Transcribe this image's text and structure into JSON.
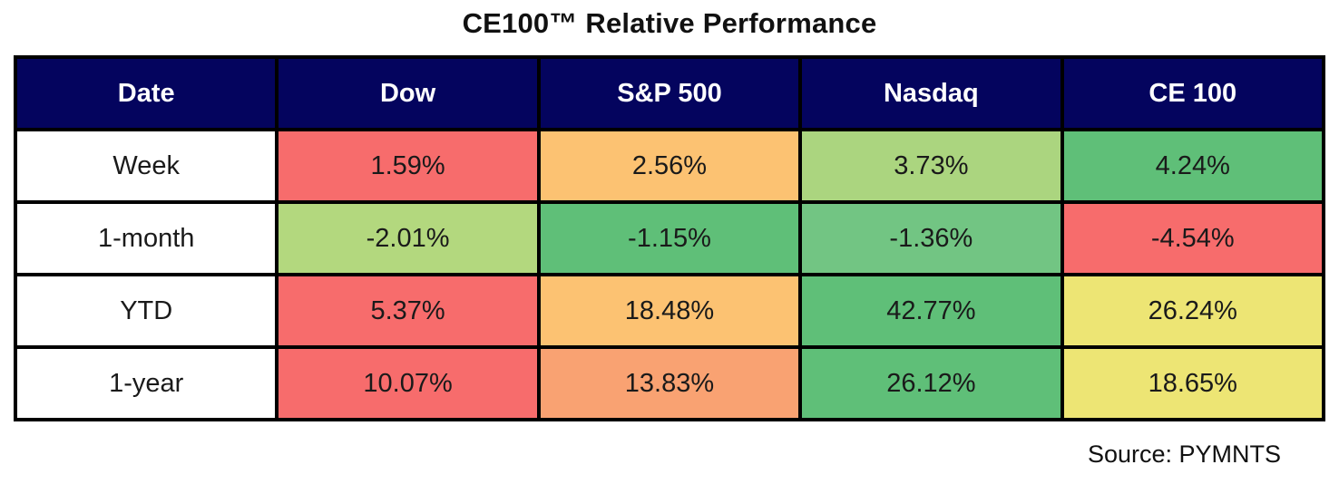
{
  "title": "CE100™ Relative Performance",
  "source_note": "Source: PYMNTS",
  "colors": {
    "header_bg": "#04045E",
    "header_text": "#FFFFFF",
    "border": "#000000",
    "red": "#F76C6C",
    "orange": "#FCC272",
    "salmon": "#F9A272",
    "yellow": "#EDE574",
    "light_green": "#B3D87E",
    "green": "#5FBF78"
  },
  "chart_data": {
    "type": "table",
    "title": "CE100™ Relative Performance",
    "columns": [
      "Date",
      "Dow",
      "S&P 500",
      "Nasdaq",
      "CE 100"
    ],
    "rows": [
      {
        "label": "Week",
        "values": [
          "1.59%",
          "2.56%",
          "3.73%",
          "4.24%"
        ],
        "cell_colors": [
          "#F76C6C",
          "#FCC272",
          "#ABD57F",
          "#5FBF78"
        ]
      },
      {
        "label": "1-month",
        "values": [
          "-2.01%",
          "-1.15%",
          "-1.36%",
          "-4.54%"
        ],
        "cell_colors": [
          "#B3D87E",
          "#5FBF78",
          "#72C583",
          "#F76C6C"
        ]
      },
      {
        "label": "YTD",
        "values": [
          "5.37%",
          "18.48%",
          "42.77%",
          "26.24%"
        ],
        "cell_colors": [
          "#F76C6C",
          "#FCC272",
          "#5FBF78",
          "#EDE574"
        ]
      },
      {
        "label": "1-year",
        "values": [
          "10.07%",
          "13.83%",
          "26.12%",
          "18.65%"
        ],
        "cell_colors": [
          "#F76C6C",
          "#F9A272",
          "#5FBF78",
          "#EDE574"
        ]
      }
    ]
  }
}
